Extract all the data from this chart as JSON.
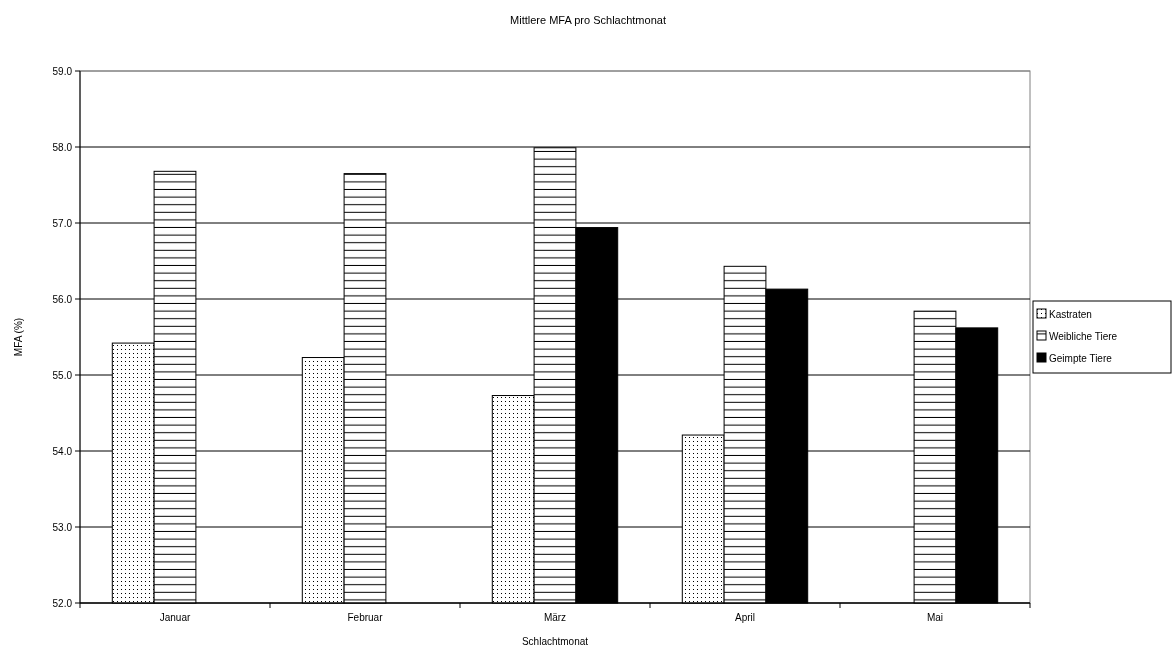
{
  "chart_data": {
    "type": "bar",
    "title": "Mittlere MFA pro Schlachtmonat",
    "xlabel": "Schlachtmonat",
    "ylabel": "MFA (%)",
    "categories": [
      "Januar",
      "Februar",
      "März",
      "April",
      "Mai"
    ],
    "series": [
      {
        "name": "Kastraten",
        "color": "#000000",
        "values": [
          55.42,
          55.23,
          54.73,
          54.21,
          null
        ]
      },
      {
        "name": "Weibliche Tiere",
        "color": "#000000",
        "values": [
          57.68,
          57.65,
          57.99,
          56.43,
          55.84
        ]
      },
      {
        "name": "Geimpte Tiere",
        "color": "#000000",
        "values": [
          null,
          null,
          56.94,
          56.13,
          55.62
        ]
      }
    ],
    "ylim": [
      52,
      59
    ],
    "yticks": [
      {
        "value": 52,
        "label": "52.0"
      },
      {
        "value": 53,
        "label": "53.0"
      },
      {
        "value": 54,
        "label": "54.0"
      },
      {
        "value": 55,
        "label": "55.0"
      },
      {
        "value": 56,
        "label": "56.0"
      },
      {
        "value": 57,
        "label": "57.0"
      },
      {
        "value": 58,
        "label": "58.0"
      },
      {
        "value": 59,
        "label": "59.0"
      }
    ],
    "grid": "y",
    "legend": "right"
  }
}
